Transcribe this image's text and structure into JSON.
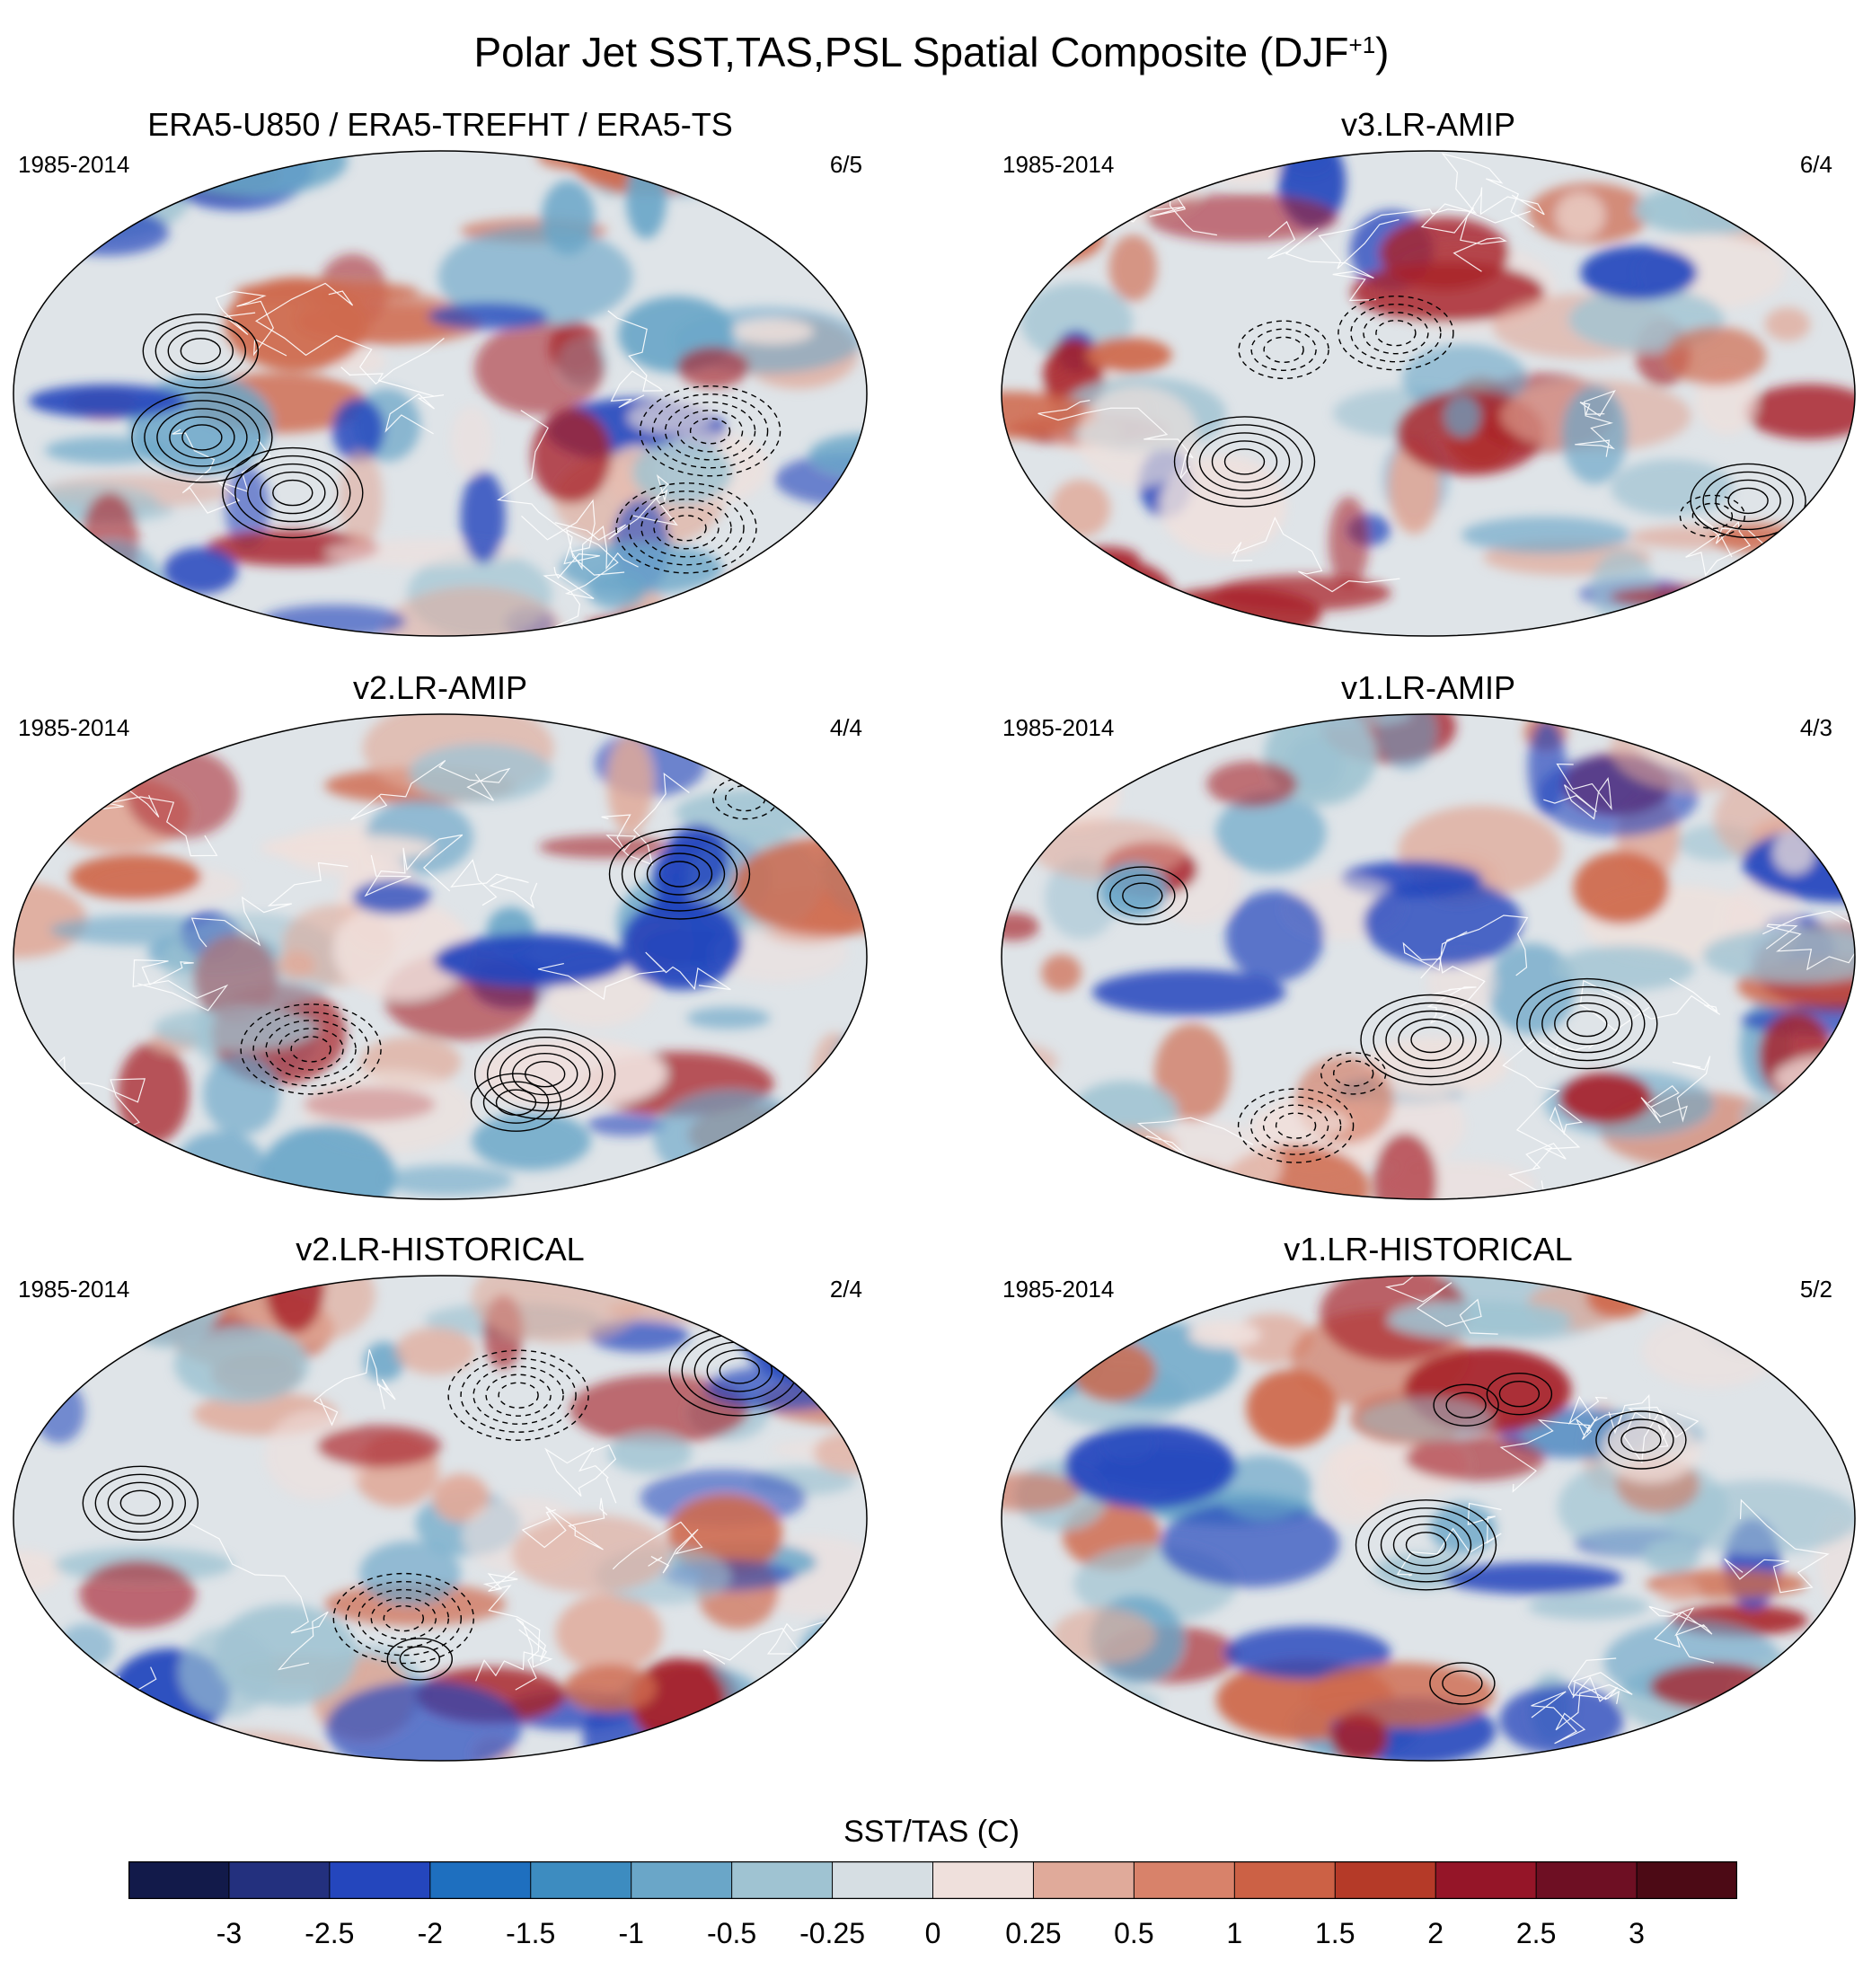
{
  "title": "Polar Jet SST,TAS,PSL Spatial Composite (DJF",
  "title_superscript": "+1",
  "title_suffix": ")",
  "panels": [
    {
      "title": "ERA5-U850 / ERA5-TREFHT / ERA5-TS",
      "period": "1985-2014",
      "count": "6/5"
    },
    {
      "title": "v3.LR-AMIP",
      "period": "1985-2014",
      "count": "6/4"
    },
    {
      "title": "v2.LR-AMIP",
      "period": "1985-2014",
      "count": "4/4"
    },
    {
      "title": "v1.LR-AMIP",
      "period": "1985-2014",
      "count": "4/3"
    },
    {
      "title": "v2.LR-HISTORICAL",
      "period": "1985-2014",
      "count": "2/4"
    },
    {
      "title": "v1.LR-HISTORICAL",
      "period": "1985-2014",
      "count": "5/2"
    }
  ],
  "colorbar": {
    "label": "SST/TAS (C)",
    "tick_labels": [
      "-3",
      "-2.5",
      "-2",
      "-1.5",
      "-1",
      "-0.5",
      "-0.25",
      "0",
      "0.25",
      "0.5",
      "1",
      "1.5",
      "2",
      "2.5",
      "3"
    ],
    "colors": [
      "#121a4a",
      "#23307e",
      "#2446bd",
      "#1e6fbf",
      "#3d8cc0",
      "#6aa6c8",
      "#9fc3d2",
      "#d6dee3",
      "#efe0dc",
      "#e0aa9a",
      "#d8826a",
      "#cc6145",
      "#b53a28",
      "#951528",
      "#6e0f23",
      "#4c0a15"
    ]
  },
  "map_colors": {
    "ocean_neutral": "#dfe4e8",
    "warm": "#cf6a4e",
    "warm_strong": "#a8222a",
    "cool": "#6aa6c8",
    "cool_strong": "#2446bd",
    "contour": "#000000"
  }
}
